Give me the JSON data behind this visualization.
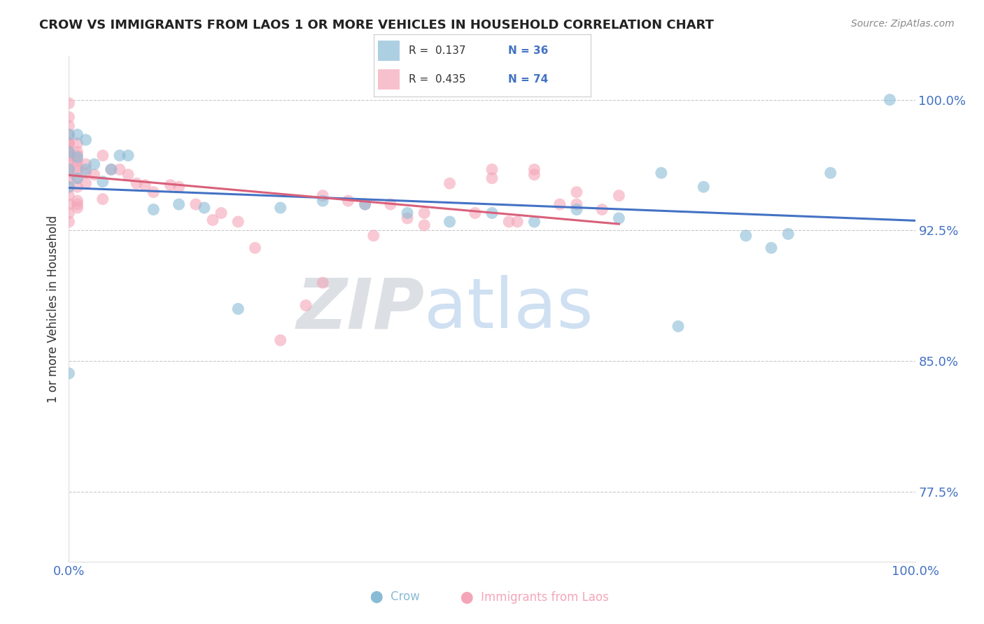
{
  "title": "CROW VS IMMIGRANTS FROM LAOS 1 OR MORE VEHICLES IN HOUSEHOLD CORRELATION CHART",
  "source": "Source: ZipAtlas.com",
  "ylabel": "1 or more Vehicles in Household",
  "ylim": [
    0.735,
    1.025
  ],
  "xlim": [
    0.0,
    1.0
  ],
  "ytick_positions": [
    0.775,
    0.85,
    0.925,
    1.0
  ],
  "ytick_labels": [
    "77.5%",
    "85.0%",
    "92.5%",
    "100.0%"
  ],
  "hlines": [
    1.0,
    0.925,
    0.85,
    0.775
  ],
  "legend_crow_R": "0.137",
  "legend_crow_N": "36",
  "legend_laos_R": "0.435",
  "legend_laos_N": "74",
  "crow_color": "#8abbd6",
  "laos_color": "#f4a6b8",
  "crow_line_color": "#4472c4",
  "laos_line_color": "#d9607a",
  "watermark_zip": "ZIP",
  "watermark_atlas": "atlas",
  "crow_scatter_x": [
    0.0,
    0.0,
    0.0,
    0.0,
    0.0,
    0.01,
    0.01,
    0.01,
    0.02,
    0.02,
    0.03,
    0.04,
    0.05,
    0.06,
    0.07,
    0.1,
    0.13,
    0.16,
    0.2,
    0.25,
    0.3,
    0.35,
    0.4,
    0.45,
    0.5,
    0.55,
    0.6,
    0.65,
    0.7,
    0.72,
    0.75,
    0.8,
    0.83,
    0.85,
    0.9,
    0.97
  ],
  "crow_scatter_y": [
    0.843,
    0.95,
    0.96,
    0.97,
    0.98,
    0.955,
    0.967,
    0.98,
    0.96,
    0.977,
    0.963,
    0.953,
    0.96,
    0.968,
    0.968,
    0.937,
    0.94,
    0.938,
    0.88,
    0.938,
    0.942,
    0.94,
    0.935,
    0.93,
    0.935,
    0.93,
    0.937,
    0.932,
    0.958,
    0.87,
    0.95,
    0.922,
    0.915,
    0.923,
    0.958,
    1.0
  ],
  "laos_scatter_x": [
    0.0,
    0.0,
    0.0,
    0.0,
    0.0,
    0.0,
    0.0,
    0.0,
    0.0,
    0.0,
    0.0,
    0.0,
    0.0,
    0.0,
    0.0,
    0.0,
    0.0,
    0.0,
    0.0,
    0.0,
    0.01,
    0.01,
    0.01,
    0.01,
    0.01,
    0.01,
    0.01,
    0.01,
    0.01,
    0.01,
    0.01,
    0.02,
    0.02,
    0.02,
    0.03,
    0.04,
    0.04,
    0.05,
    0.06,
    0.07,
    0.08,
    0.09,
    0.1,
    0.12,
    0.13,
    0.15,
    0.17,
    0.18,
    0.2,
    0.22,
    0.25,
    0.28,
    0.3,
    0.33,
    0.36,
    0.4,
    0.45,
    0.5,
    0.52,
    0.55,
    0.3,
    0.35,
    0.38,
    0.42,
    0.48,
    0.53,
    0.58,
    0.6,
    0.65,
    0.6,
    0.63,
    0.55,
    0.42,
    0.5
  ],
  "laos_scatter_y": [
    0.998,
    0.99,
    0.985,
    0.98,
    0.975,
    0.97,
    0.965,
    0.96,
    0.955,
    0.95,
    0.945,
    0.94,
    0.935,
    0.93,
    0.975,
    0.97,
    0.965,
    0.958,
    0.968,
    0.975,
    0.975,
    0.97,
    0.965,
    0.96,
    0.955,
    0.95,
    0.942,
    0.938,
    0.968,
    0.962,
    0.94,
    0.963,
    0.958,
    0.952,
    0.957,
    0.968,
    0.943,
    0.96,
    0.96,
    0.957,
    0.952,
    0.951,
    0.947,
    0.951,
    0.95,
    0.94,
    0.931,
    0.935,
    0.93,
    0.915,
    0.862,
    0.882,
    0.895,
    0.942,
    0.922,
    0.932,
    0.952,
    0.96,
    0.93,
    0.957,
    0.945,
    0.94,
    0.94,
    0.928,
    0.935,
    0.93,
    0.94,
    0.947,
    0.945,
    0.94,
    0.937,
    0.96,
    0.935,
    0.955
  ]
}
